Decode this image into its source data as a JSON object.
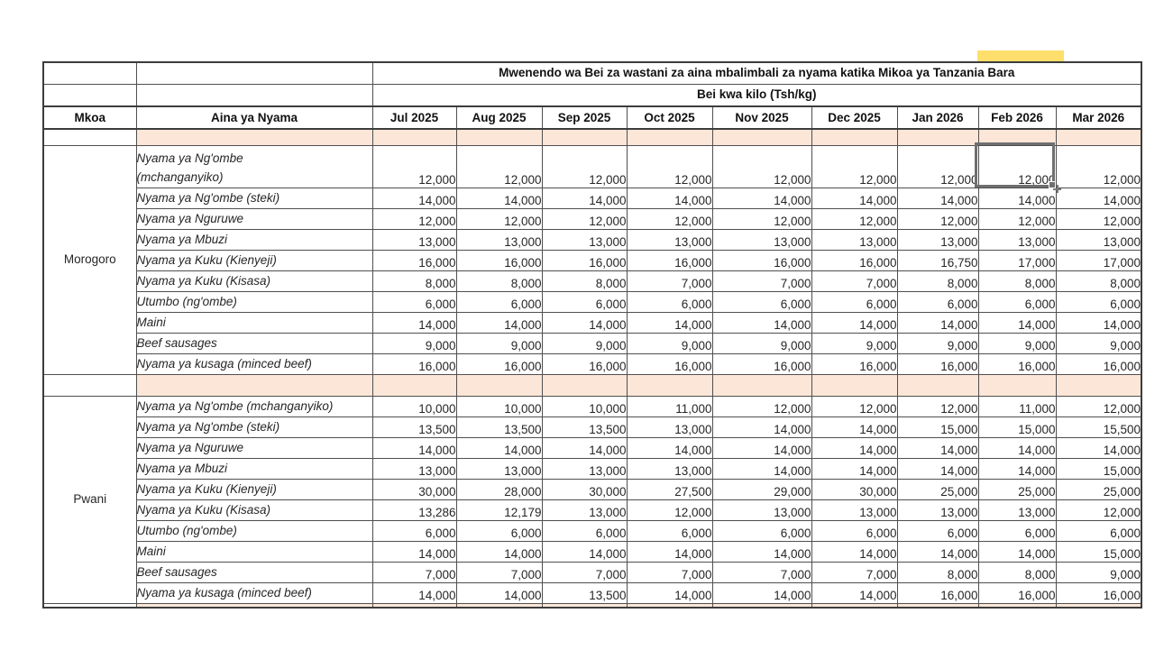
{
  "app": {
    "kind": "spreadsheet-table"
  },
  "colors": {
    "separator_fill": "#fce6d8",
    "grid_border": "#4f4f4f",
    "selection_border": "#6f6f6f",
    "yellow_highlight": "#ffdf6b",
    "background": "#ffffff"
  },
  "table": {
    "title": "Mwenendo wa Bei za wastani za aina mbalimbali za nyama katika Mikoa ya Tanzania Bara",
    "subtitle": "Bei kwa kilo (Tsh/kg)",
    "col_headers": {
      "mkoa": "Mkoa",
      "aina": "Aina ya Nyama"
    },
    "months": [
      "Jul 2025",
      "Aug 2025",
      "Sep 2025",
      "Oct 2025",
      "Nov 2025",
      "Dec 2025",
      "Jan 2026",
      "Feb 2026",
      "Mar 2026"
    ],
    "sections": [
      {
        "region": "Morogoro",
        "rows": [
          {
            "item": "Nyama ya Ng'ombe (mchanganyiko)",
            "item_lines": [
              "Nyama ya Ng'ombe",
              "(mchanganyiko)"
            ],
            "tall": true,
            "values": [
              "12,000",
              "12,000",
              "12,000",
              "12,000",
              "12,000",
              "12,000",
              "12,000",
              "12,000",
              "12,000"
            ]
          },
          {
            "item": "Nyama ya Ng'ombe (steki)",
            "item_lines": [
              "Nyama ya Ng'ombe (steki)"
            ],
            "values": [
              "14,000",
              "14,000",
              "14,000",
              "14,000",
              "14,000",
              "14,000",
              "14,000",
              "14,000",
              "14,000"
            ]
          },
          {
            "item": "Nyama ya Nguruwe",
            "item_lines": [
              "Nyama ya Nguruwe"
            ],
            "values": [
              "12,000",
              "12,000",
              "12,000",
              "12,000",
              "12,000",
              "12,000",
              "12,000",
              "12,000",
              "12,000"
            ]
          },
          {
            "item": "Nyama ya Mbuzi",
            "item_lines": [
              "Nyama ya Mbuzi"
            ],
            "values": [
              "13,000",
              "13,000",
              "13,000",
              "13,000",
              "13,000",
              "13,000",
              "13,000",
              "13,000",
              "13,000"
            ]
          },
          {
            "item": "Nyama ya Kuku (Kienyeji)",
            "item_lines": [
              "Nyama ya Kuku (Kienyeji)"
            ],
            "values": [
              "16,000",
              "16,000",
              "16,000",
              "16,000",
              "16,000",
              "16,000",
              "16,750",
              "17,000",
              "17,000"
            ]
          },
          {
            "item": "Nyama ya Kuku (Kisasa)",
            "item_lines": [
              "Nyama ya Kuku (Kisasa)"
            ],
            "values": [
              "8,000",
              "8,000",
              "8,000",
              "7,000",
              "7,000",
              "7,000",
              "8,000",
              "8,000",
              "8,000"
            ]
          },
          {
            "item": "Utumbo (ng'ombe)",
            "item_lines": [
              "Utumbo (ng'ombe)"
            ],
            "values": [
              "6,000",
              "6,000",
              "6,000",
              "6,000",
              "6,000",
              "6,000",
              "6,000",
              "6,000",
              "6,000"
            ]
          },
          {
            "item": "Maini",
            "item_lines": [
              "Maini"
            ],
            "values": [
              "14,000",
              "14,000",
              "14,000",
              "14,000",
              "14,000",
              "14,000",
              "14,000",
              "14,000",
              "14,000"
            ]
          },
          {
            "item": "Beef sausages",
            "item_lines": [
              "Beef sausages"
            ],
            "values": [
              "9,000",
              "9,000",
              "9,000",
              "9,000",
              "9,000",
              "9,000",
              "9,000",
              "9,000",
              "9,000"
            ]
          },
          {
            "item": "Nyama ya kusaga (minced beef)",
            "item_lines": [
              "Nyama ya kusaga (minced beef)"
            ],
            "values": [
              "16,000",
              "16,000",
              "16,000",
              "16,000",
              "16,000",
              "16,000",
              "16,000",
              "16,000",
              "16,000"
            ]
          }
        ]
      },
      {
        "region": "Pwani",
        "rows": [
          {
            "item": "Nyama ya Ng'ombe (mchanganyiko)",
            "item_lines": [
              "Nyama ya Ng'ombe (mchanganyiko)"
            ],
            "values": [
              "10,000",
              "10,000",
              "10,000",
              "11,000",
              "12,000",
              "12,000",
              "12,000",
              "11,000",
              "12,000"
            ]
          },
          {
            "item": "Nyama ya Ng'ombe (steki)",
            "item_lines": [
              "Nyama ya Ng'ombe (steki)"
            ],
            "values": [
              "13,500",
              "13,500",
              "13,500",
              "13,000",
              "14,000",
              "14,000",
              "15,000",
              "15,000",
              "15,500"
            ]
          },
          {
            "item": "Nyama ya Nguruwe",
            "item_lines": [
              "Nyama ya Nguruwe"
            ],
            "values": [
              "14,000",
              "14,000",
              "14,000",
              "14,000",
              "14,000",
              "14,000",
              "14,000",
              "14,000",
              "14,000"
            ]
          },
          {
            "item": "Nyama ya Mbuzi",
            "item_lines": [
              "Nyama ya Mbuzi"
            ],
            "values": [
              "13,000",
              "13,000",
              "13,000",
              "13,000",
              "14,000",
              "14,000",
              "14,000",
              "14,000",
              "15,000"
            ]
          },
          {
            "item": "Nyama ya Kuku (Kienyeji)",
            "item_lines": [
              "Nyama ya Kuku (Kienyeji)"
            ],
            "values": [
              "30,000",
              "28,000",
              "30,000",
              "27,500",
              "29,000",
              "30,000",
              "25,000",
              "25,000",
              "25,000"
            ]
          },
          {
            "item": "Nyama ya Kuku (Kisasa)",
            "item_lines": [
              "Nyama ya Kuku (Kisasa)"
            ],
            "values": [
              "13,286",
              "12,179",
              "13,000",
              "12,000",
              "13,000",
              "13,000",
              "13,000",
              "13,000",
              "12,000"
            ]
          },
          {
            "item": "Utumbo (ng'ombe)",
            "item_lines": [
              "Utumbo (ng'ombe)"
            ],
            "values": [
              "6,000",
              "6,000",
              "6,000",
              "6,000",
              "6,000",
              "6,000",
              "6,000",
              "6,000",
              "6,000"
            ]
          },
          {
            "item": "Maini",
            "item_lines": [
              "Maini"
            ],
            "values": [
              "14,000",
              "14,000",
              "14,000",
              "14,000",
              "14,000",
              "14,000",
              "14,000",
              "14,000",
              "15,000"
            ]
          },
          {
            "item": "Beef sausages",
            "item_lines": [
              "Beef sausages"
            ],
            "values": [
              "7,000",
              "7,000",
              "7,000",
              "7,000",
              "7,000",
              "7,000",
              "8,000",
              "8,000",
              "9,000"
            ]
          },
          {
            "item": "Nyama ya kusaga (minced beef)",
            "item_lines": [
              "Nyama ya kusaga (minced beef)"
            ],
            "values": [
              "14,000",
              "14,000",
              "13,500",
              "14,000",
              "14,000",
              "14,000",
              "16,000",
              "16,000",
              "16,000"
            ]
          }
        ]
      }
    ],
    "selection": {
      "region": "Morogoro",
      "item": "Nyama ya Ng'ombe (mchanganyiko)",
      "month": "Feb 2026",
      "value": "12,000"
    }
  }
}
